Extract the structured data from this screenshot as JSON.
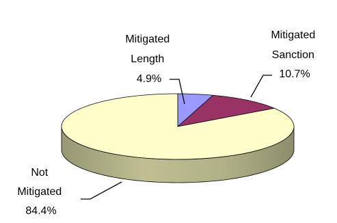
{
  "chart_data": {
    "type": "pie",
    "title": "",
    "slices": [
      {
        "name": "Mitigated Length",
        "value": 4.9,
        "label_lines": [
          "Mitigated",
          "Length",
          "4.9%"
        ],
        "color": "#9999ff",
        "side_color": "#5c5cb0"
      },
      {
        "name": "Mitigated Sanction",
        "value": 10.7,
        "label_lines": [
          "Mitigated",
          "Sanction",
          "10.7%"
        ],
        "color": "#993366",
        "side_color": "#5e1f3f"
      },
      {
        "name": "Not Mitigated",
        "value": 84.4,
        "label_lines": [
          "Not",
          "Mitigated",
          "84.4%"
        ],
        "color": "#ffffcc",
        "side_color": "#c9c99a"
      }
    ],
    "three_d": true,
    "legend": "none"
  }
}
